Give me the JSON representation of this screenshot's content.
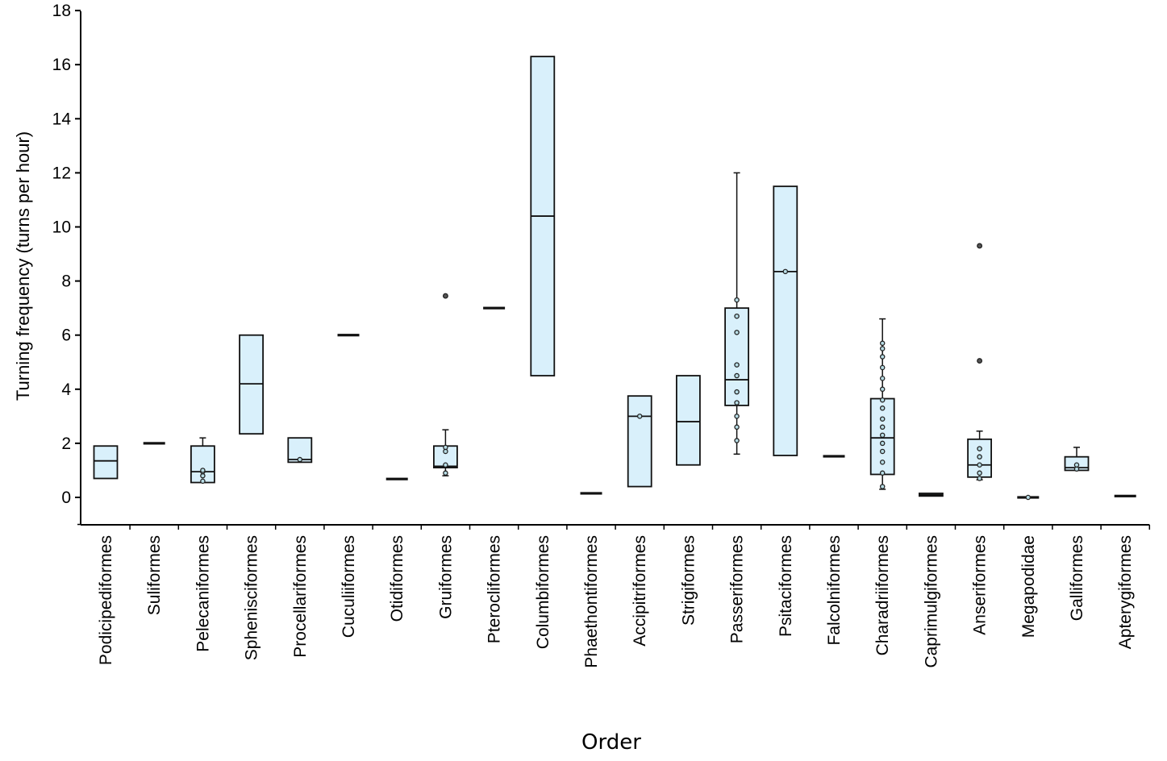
{
  "chart_data": {
    "type": "box",
    "xlabel": "Order",
    "ylabel": "Turning frequency (turns per hour)",
    "ylim": [
      -1,
      18
    ],
    "yticks": [
      "0",
      "2",
      "4",
      "6",
      "8",
      "10",
      "12",
      "14",
      "16",
      "18"
    ],
    "grid": false,
    "legend": "none",
    "box_fill": "#d9f0fb",
    "stroke": "#111111",
    "categories": [
      "Podicipediformes",
      "Suliformes",
      "Pelecaniformes",
      "Sphenisciformes",
      "Procellariformes",
      "Cuculiiformes",
      "Otidiformes",
      "Gruiformes",
      "Pterocliformes",
      "Columbiformes",
      "Phaethontiformes",
      "Accipitriformes",
      "Strigiformes",
      "Passeriformes",
      "Psitaciformes",
      "Falcolniformes",
      "Charadriiformes",
      "Caprimulgiformes",
      "Anseriformes",
      "Megapodidae",
      "Galliformes",
      "Apterygiformes"
    ],
    "boxes": [
      {
        "q1": 0.7,
        "median": 1.35,
        "q3": 1.9
      },
      {
        "q1": 2.0,
        "median": 2.0,
        "q3": 2.0
      },
      {
        "q1": 0.55,
        "median": 0.95,
        "q3": 1.9,
        "whisker_high": 2.2,
        "points": [
          0.6,
          0.8,
          0.95,
          1.0
        ]
      },
      {
        "q1": 2.35,
        "median": 4.2,
        "q3": 6.0
      },
      {
        "q1": 1.3,
        "median": 1.4,
        "q3": 2.2,
        "points": [
          1.4
        ]
      },
      {
        "q1": 6.0,
        "median": 6.0,
        "q3": 6.0
      },
      {
        "q1": 0.68,
        "median": 0.68,
        "q3": 0.68
      },
      {
        "q1": 1.1,
        "median": 1.15,
        "q3": 1.9,
        "whisker_low": 0.8,
        "whisker_high": 2.5,
        "points": [
          0.9,
          1.2,
          1.7,
          1.85
        ],
        "outliers": [
          7.45
        ]
      },
      {
        "q1": 7.0,
        "median": 7.0,
        "q3": 7.0
      },
      {
        "q1": 4.5,
        "median": 10.4,
        "q3": 16.3
      },
      {
        "q1": 0.15,
        "median": 0.15,
        "q3": 0.15
      },
      {
        "q1": 0.4,
        "median": 3.0,
        "q3": 3.75,
        "points": [
          3.0
        ]
      },
      {
        "q1": 1.2,
        "median": 2.8,
        "q3": 4.5
      },
      {
        "q1": 3.4,
        "median": 4.35,
        "q3": 7.0,
        "whisker_low": 1.6,
        "whisker_high": 12.0,
        "points": [
          2.1,
          2.6,
          3.0,
          3.5,
          3.9,
          4.5,
          4.9,
          6.1,
          6.7,
          7.3
        ]
      },
      {
        "q1": 1.55,
        "median": 8.35,
        "q3": 11.5,
        "points": [
          8.35
        ]
      },
      {
        "q1": 1.52,
        "median": 1.52,
        "q3": 1.52
      },
      {
        "q1": 0.85,
        "median": 2.2,
        "q3": 3.65,
        "whisker_low": 0.3,
        "whisker_high": 6.6,
        "points": [
          0.4,
          0.9,
          1.3,
          1.7,
          2.0,
          2.3,
          2.6,
          2.9,
          3.3,
          3.6,
          4.0,
          4.4,
          4.8,
          5.2,
          5.5,
          5.7
        ]
      },
      {
        "q1": 0.05,
        "median": 0.1,
        "q3": 0.15
      },
      {
        "q1": 0.75,
        "median": 1.2,
        "q3": 2.15,
        "whisker_low": 0.65,
        "whisker_high": 2.45,
        "points": [
          0.7,
          0.9,
          1.2,
          1.5,
          1.8
        ],
        "outliers": [
          5.05,
          9.3
        ]
      },
      {
        "q1": 0.0,
        "median": 0.0,
        "q3": 0.0,
        "points": [
          0.0
        ]
      },
      {
        "q1": 1.0,
        "median": 1.1,
        "q3": 1.5,
        "whisker_high": 1.85,
        "points": [
          1.05,
          1.2
        ]
      },
      {
        "q1": 0.05,
        "median": 0.05,
        "q3": 0.05
      }
    ]
  }
}
